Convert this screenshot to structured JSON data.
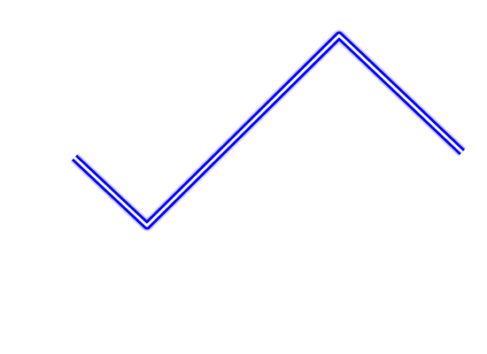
{
  "polyline": {
    "stroke_color": "#0000ff",
    "glow_color": "#8080ff",
    "inner_color": "#ffffff"
  }
}
